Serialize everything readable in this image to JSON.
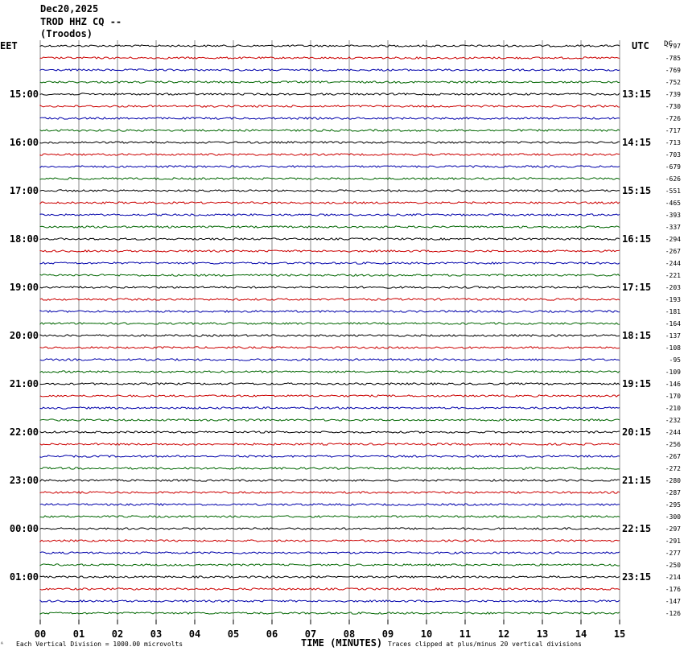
{
  "header": {
    "date": "Dec20,2025",
    "station": "TROD HHZ CQ --",
    "location": "(Troodos)"
  },
  "left_tz_label": "EET",
  "right_tz_label": "UTC",
  "dc_label": "DC",
  "footer": {
    "scale_note": "Each Vertical Division = 1000.00 microvolts",
    "corner_mark": "ᴬ",
    "clip_note": "Traces clipped at plus/minus 20 vertical divisions"
  },
  "chart_data": {
    "type": "line",
    "title": "",
    "xlabel": "TIME (MINUTES)",
    "ylabel": "",
    "xlim": [
      0,
      15
    ],
    "x_ticks": [
      "00",
      "01",
      "02",
      "03",
      "04",
      "05",
      "06",
      "07",
      "08",
      "09",
      "10",
      "11",
      "12",
      "13",
      "14",
      "15"
    ],
    "trace_minutes": 15,
    "trace_count": 48,
    "trace_colors": [
      "#000000",
      "#cc0000",
      "#0000aa",
      "#006600"
    ],
    "grid": true,
    "left_hour_labels": [
      "15:00",
      "16:00",
      "17:00",
      "18:00",
      "19:00",
      "20:00",
      "21:00",
      "22:00",
      "23:00",
      "00:00",
      "01:00"
    ],
    "right_hour_labels": [
      "13:15",
      "14:15",
      "15:15",
      "16:15",
      "17:15",
      "18:15",
      "19:15",
      "20:15",
      "21:15",
      "22:15",
      "23:15"
    ],
    "dc_offsets": [
      -797,
      -785,
      -769,
      -752,
      -739,
      -730,
      -726,
      -717,
      -713,
      -703,
      -679,
      -626,
      -551,
      -465,
      -393,
      -337,
      -294,
      -267,
      -244,
      -221,
      -203,
      -193,
      -181,
      -164,
      -137,
      -108,
      -95,
      -109,
      -146,
      -170,
      -210,
      -232,
      -244,
      -256,
      -267,
      -272,
      -280,
      -287,
      -295,
      -300,
      -297,
      -291,
      -277,
      -250,
      -214,
      -176,
      -147,
      -126
    ]
  }
}
